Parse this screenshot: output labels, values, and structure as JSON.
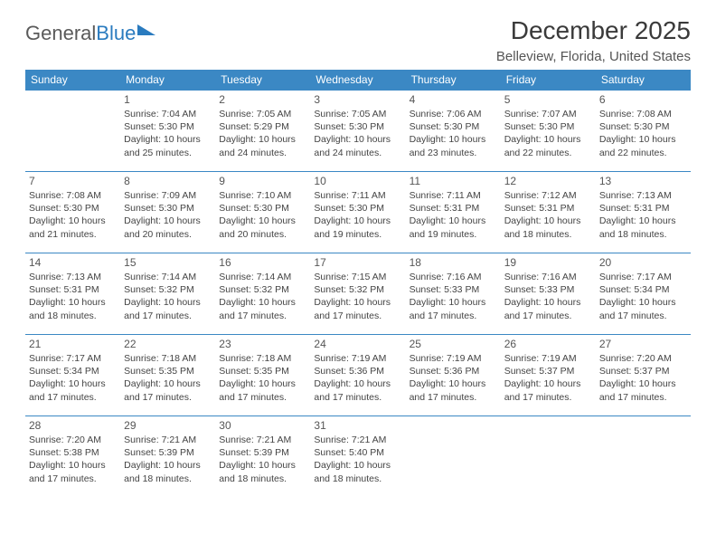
{
  "colors": {
    "header_bg": "#3b88c4",
    "header_text": "#ffffff",
    "row_border": "#3b88c4",
    "body_text": "#444444",
    "title_text": "#3a3a3a",
    "logo_gray": "#5a5a5a",
    "logo_blue": "#2a7bbf",
    "page_bg": "#ffffff"
  },
  "typography": {
    "month_title_fontsize": 28,
    "location_fontsize": 15,
    "weekday_fontsize": 12,
    "daynum_fontsize": 12,
    "info_fontsize": 10.5
  },
  "logo": {
    "word1": "General",
    "word2": "Blue"
  },
  "title": "December 2025",
  "location": "Belleview, Florida, United States",
  "weekdays": [
    "Sunday",
    "Monday",
    "Tuesday",
    "Wednesday",
    "Thursday",
    "Friday",
    "Saturday"
  ],
  "weeks": [
    [
      null,
      {
        "n": "1",
        "sr": "Sunrise: 7:04 AM",
        "ss": "Sunset: 5:30 PM",
        "d1": "Daylight: 10 hours",
        "d2": "and 25 minutes."
      },
      {
        "n": "2",
        "sr": "Sunrise: 7:05 AM",
        "ss": "Sunset: 5:29 PM",
        "d1": "Daylight: 10 hours",
        "d2": "and 24 minutes."
      },
      {
        "n": "3",
        "sr": "Sunrise: 7:05 AM",
        "ss": "Sunset: 5:30 PM",
        "d1": "Daylight: 10 hours",
        "d2": "and 24 minutes."
      },
      {
        "n": "4",
        "sr": "Sunrise: 7:06 AM",
        "ss": "Sunset: 5:30 PM",
        "d1": "Daylight: 10 hours",
        "d2": "and 23 minutes."
      },
      {
        "n": "5",
        "sr": "Sunrise: 7:07 AM",
        "ss": "Sunset: 5:30 PM",
        "d1": "Daylight: 10 hours",
        "d2": "and 22 minutes."
      },
      {
        "n": "6",
        "sr": "Sunrise: 7:08 AM",
        "ss": "Sunset: 5:30 PM",
        "d1": "Daylight: 10 hours",
        "d2": "and 22 minutes."
      }
    ],
    [
      {
        "n": "7",
        "sr": "Sunrise: 7:08 AM",
        "ss": "Sunset: 5:30 PM",
        "d1": "Daylight: 10 hours",
        "d2": "and 21 minutes."
      },
      {
        "n": "8",
        "sr": "Sunrise: 7:09 AM",
        "ss": "Sunset: 5:30 PM",
        "d1": "Daylight: 10 hours",
        "d2": "and 20 minutes."
      },
      {
        "n": "9",
        "sr": "Sunrise: 7:10 AM",
        "ss": "Sunset: 5:30 PM",
        "d1": "Daylight: 10 hours",
        "d2": "and 20 minutes."
      },
      {
        "n": "10",
        "sr": "Sunrise: 7:11 AM",
        "ss": "Sunset: 5:30 PM",
        "d1": "Daylight: 10 hours",
        "d2": "and 19 minutes."
      },
      {
        "n": "11",
        "sr": "Sunrise: 7:11 AM",
        "ss": "Sunset: 5:31 PM",
        "d1": "Daylight: 10 hours",
        "d2": "and 19 minutes."
      },
      {
        "n": "12",
        "sr": "Sunrise: 7:12 AM",
        "ss": "Sunset: 5:31 PM",
        "d1": "Daylight: 10 hours",
        "d2": "and 18 minutes."
      },
      {
        "n": "13",
        "sr": "Sunrise: 7:13 AM",
        "ss": "Sunset: 5:31 PM",
        "d1": "Daylight: 10 hours",
        "d2": "and 18 minutes."
      }
    ],
    [
      {
        "n": "14",
        "sr": "Sunrise: 7:13 AM",
        "ss": "Sunset: 5:31 PM",
        "d1": "Daylight: 10 hours",
        "d2": "and 18 minutes."
      },
      {
        "n": "15",
        "sr": "Sunrise: 7:14 AM",
        "ss": "Sunset: 5:32 PM",
        "d1": "Daylight: 10 hours",
        "d2": "and 17 minutes."
      },
      {
        "n": "16",
        "sr": "Sunrise: 7:14 AM",
        "ss": "Sunset: 5:32 PM",
        "d1": "Daylight: 10 hours",
        "d2": "and 17 minutes."
      },
      {
        "n": "17",
        "sr": "Sunrise: 7:15 AM",
        "ss": "Sunset: 5:32 PM",
        "d1": "Daylight: 10 hours",
        "d2": "and 17 minutes."
      },
      {
        "n": "18",
        "sr": "Sunrise: 7:16 AM",
        "ss": "Sunset: 5:33 PM",
        "d1": "Daylight: 10 hours",
        "d2": "and 17 minutes."
      },
      {
        "n": "19",
        "sr": "Sunrise: 7:16 AM",
        "ss": "Sunset: 5:33 PM",
        "d1": "Daylight: 10 hours",
        "d2": "and 17 minutes."
      },
      {
        "n": "20",
        "sr": "Sunrise: 7:17 AM",
        "ss": "Sunset: 5:34 PM",
        "d1": "Daylight: 10 hours",
        "d2": "and 17 minutes."
      }
    ],
    [
      {
        "n": "21",
        "sr": "Sunrise: 7:17 AM",
        "ss": "Sunset: 5:34 PM",
        "d1": "Daylight: 10 hours",
        "d2": "and 17 minutes."
      },
      {
        "n": "22",
        "sr": "Sunrise: 7:18 AM",
        "ss": "Sunset: 5:35 PM",
        "d1": "Daylight: 10 hours",
        "d2": "and 17 minutes."
      },
      {
        "n": "23",
        "sr": "Sunrise: 7:18 AM",
        "ss": "Sunset: 5:35 PM",
        "d1": "Daylight: 10 hours",
        "d2": "and 17 minutes."
      },
      {
        "n": "24",
        "sr": "Sunrise: 7:19 AM",
        "ss": "Sunset: 5:36 PM",
        "d1": "Daylight: 10 hours",
        "d2": "and 17 minutes."
      },
      {
        "n": "25",
        "sr": "Sunrise: 7:19 AM",
        "ss": "Sunset: 5:36 PM",
        "d1": "Daylight: 10 hours",
        "d2": "and 17 minutes."
      },
      {
        "n": "26",
        "sr": "Sunrise: 7:19 AM",
        "ss": "Sunset: 5:37 PM",
        "d1": "Daylight: 10 hours",
        "d2": "and 17 minutes."
      },
      {
        "n": "27",
        "sr": "Sunrise: 7:20 AM",
        "ss": "Sunset: 5:37 PM",
        "d1": "Daylight: 10 hours",
        "d2": "and 17 minutes."
      }
    ],
    [
      {
        "n": "28",
        "sr": "Sunrise: 7:20 AM",
        "ss": "Sunset: 5:38 PM",
        "d1": "Daylight: 10 hours",
        "d2": "and 17 minutes."
      },
      {
        "n": "29",
        "sr": "Sunrise: 7:21 AM",
        "ss": "Sunset: 5:39 PM",
        "d1": "Daylight: 10 hours",
        "d2": "and 18 minutes."
      },
      {
        "n": "30",
        "sr": "Sunrise: 7:21 AM",
        "ss": "Sunset: 5:39 PM",
        "d1": "Daylight: 10 hours",
        "d2": "and 18 minutes."
      },
      {
        "n": "31",
        "sr": "Sunrise: 7:21 AM",
        "ss": "Sunset: 5:40 PM",
        "d1": "Daylight: 10 hours",
        "d2": "and 18 minutes."
      },
      null,
      null,
      null
    ]
  ]
}
